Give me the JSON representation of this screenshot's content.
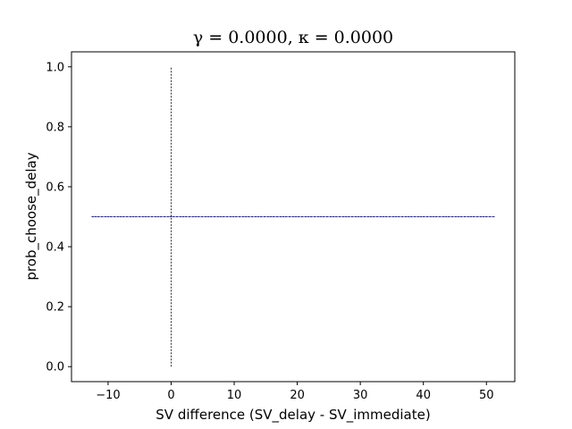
{
  "chart_data": {
    "type": "line",
    "title": "γ = 0.0000, κ = 0.0000",
    "xlabel": "SV difference (SV_delay - SV_immediate)",
    "ylabel": "prob_choose_delay",
    "xlim": [
      -15.8,
      54.5
    ],
    "ylim": [
      -0.05,
      1.05
    ],
    "xticks": [
      -10,
      0,
      10,
      20,
      30,
      40,
      50
    ],
    "yticks": [
      0.0,
      0.2,
      0.4,
      0.6,
      0.8,
      1.0
    ],
    "xtick_labels": [
      "−10",
      "0",
      "10",
      "20",
      "30",
      "40",
      "50"
    ],
    "ytick_labels": [
      "0.0",
      "0.2",
      "0.4",
      "0.6",
      "0.8",
      "1.0"
    ],
    "grid": false,
    "series": [
      {
        "x": [
          -12.6,
          51.3
        ],
        "y": [
          0.5,
          0.5
        ],
        "color": "#0000aa",
        "style": "dotted"
      }
    ],
    "reference_lines": [
      {
        "orientation": "vertical",
        "x": 0,
        "y_from": 0,
        "y_to": 1,
        "color": "#000000",
        "style": "dashed"
      },
      {
        "orientation": "horizontal",
        "y": 0.5,
        "x_from": -12.6,
        "x_to": 51.3,
        "color": "#000000",
        "style": "dashed"
      }
    ]
  }
}
